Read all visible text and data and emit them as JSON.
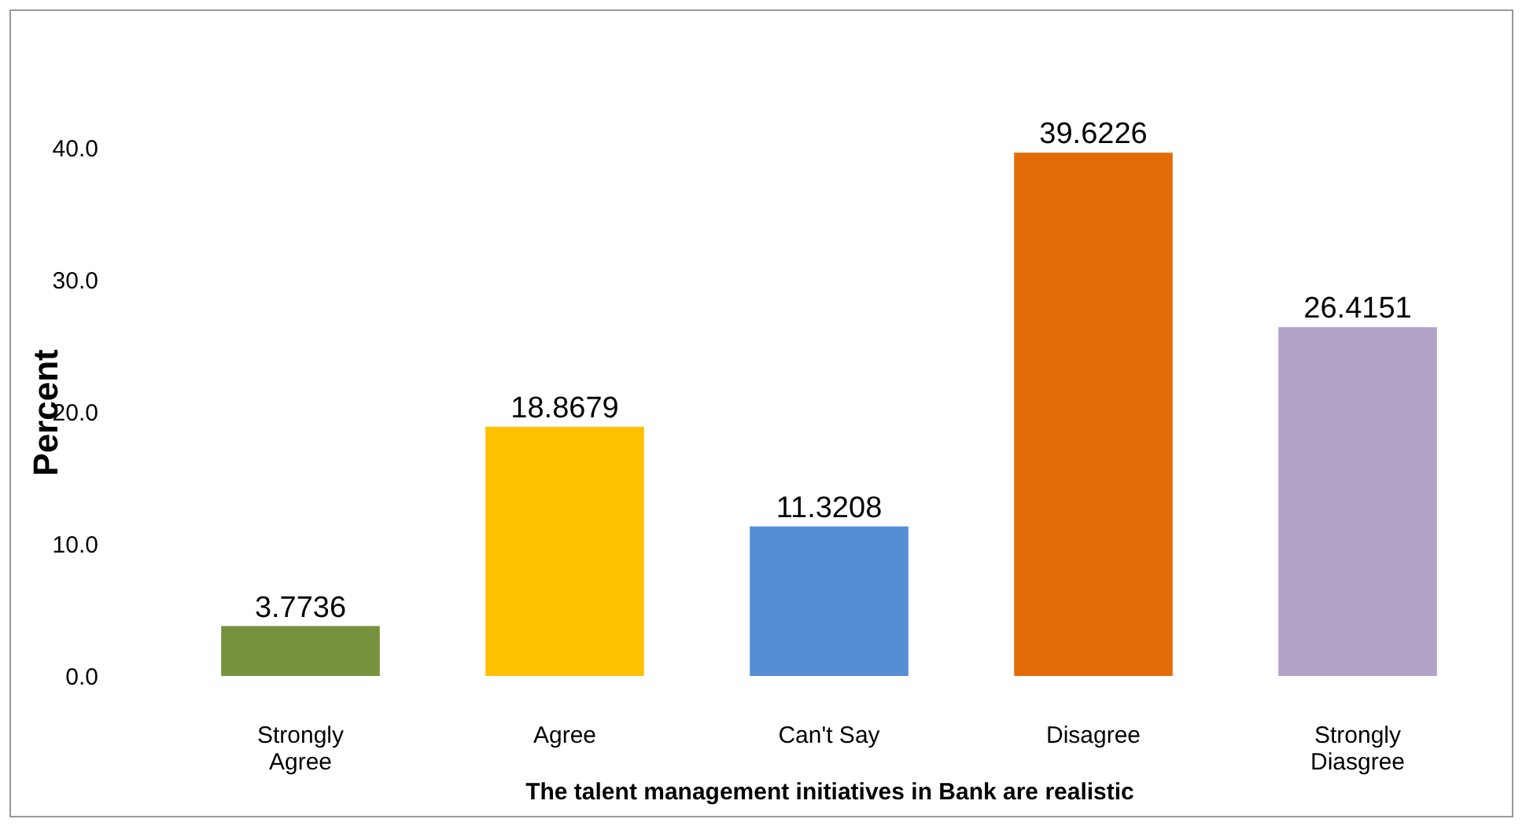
{
  "chart_data": {
    "type": "bar",
    "xlabel": "The talent management initiatives in Bank are realistic",
    "ylabel": "Percent",
    "categories": [
      "Strongly Agree",
      "Agree",
      "Can't Say",
      "Disagree",
      "Strongly Diasgree"
    ],
    "values": [
      3.7736,
      18.8679,
      11.3208,
      39.6226,
      26.4151
    ],
    "colors": [
      "#76923c",
      "#ffc000",
      "#558ed5",
      "#e36c09",
      "#b3a2c7"
    ],
    "ylim": [
      0,
      40
    ],
    "yticks": [
      {
        "value": 0,
        "label": "0.0"
      },
      {
        "value": 10,
        "label": "10.0"
      },
      {
        "value": 20,
        "label": "20.0"
      },
      {
        "value": 30,
        "label": "30.0"
      },
      {
        "value": 40,
        "label": "40.0"
      }
    ],
    "data_labels": true,
    "grid": false
  }
}
